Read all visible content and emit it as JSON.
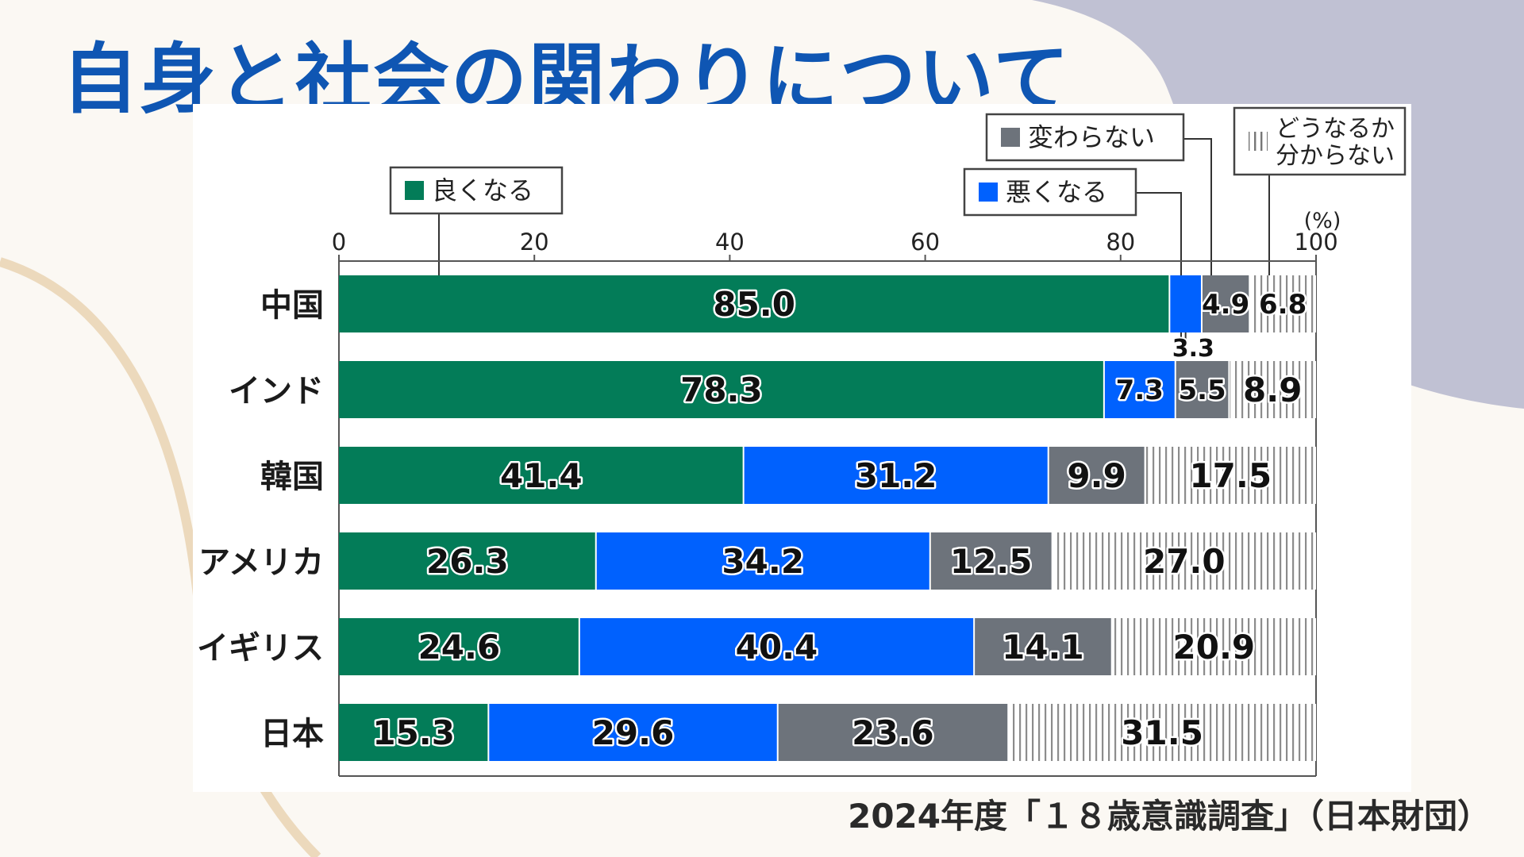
{
  "page": {
    "title": "自身と社会の関わりについて",
    "source": "2024年度「１８歳意識調査」（日本財団）"
  },
  "colors": {
    "good": "#037c58",
    "bad": "#0061fe",
    "same": "#6d737b",
    "unknown_stripe": "#8c8c8c",
    "title": "#0f56b3"
  },
  "chart_data": {
    "type": "bar",
    "orientation": "horizontal",
    "stacked": true,
    "unit": "(%)",
    "xlim": [
      0,
      100
    ],
    "x_ticks": [
      "0",
      "20",
      "40",
      "60",
      "80",
      "100"
    ],
    "categories": [
      "中国",
      "インド",
      "韓国",
      "アメリカ",
      "イギリス",
      "日本"
    ],
    "series": [
      {
        "name": "良くなる",
        "color": "#037c58",
        "values": [
          85.0,
          78.3,
          41.4,
          26.3,
          24.6,
          15.3
        ]
      },
      {
        "name": "悪くなる",
        "color": "#0061fe",
        "values": [
          3.3,
          7.3,
          31.2,
          34.2,
          40.4,
          29.6
        ]
      },
      {
        "name": "変わらない",
        "color": "#6d737b",
        "values": [
          4.9,
          5.5,
          9.9,
          12.5,
          14.1,
          23.6
        ]
      },
      {
        "name": "どうなるか分からない",
        "color": "striped-gray",
        "values": [
          6.8,
          8.9,
          17.5,
          27.0,
          20.9,
          31.5
        ]
      }
    ],
    "data_labels": [
      [
        "85.0",
        "3.3",
        "4.9",
        "6.8"
      ],
      [
        "78.3",
        "7.3",
        "5.5",
        "8.9"
      ],
      [
        "41.4",
        "31.2",
        "9.9",
        "17.5"
      ],
      [
        "26.3",
        "34.2",
        "12.5",
        "27.0"
      ],
      [
        "24.6",
        "40.4",
        "14.1",
        "20.9"
      ],
      [
        "15.3",
        "29.6",
        "23.6",
        "31.5"
      ]
    ],
    "legend": {
      "placement": "callouts above bars",
      "labels": [
        "良くなる",
        "悪くなる",
        "変わらない",
        "どうなるか",
        "分からない"
      ]
    },
    "grid": false
  }
}
